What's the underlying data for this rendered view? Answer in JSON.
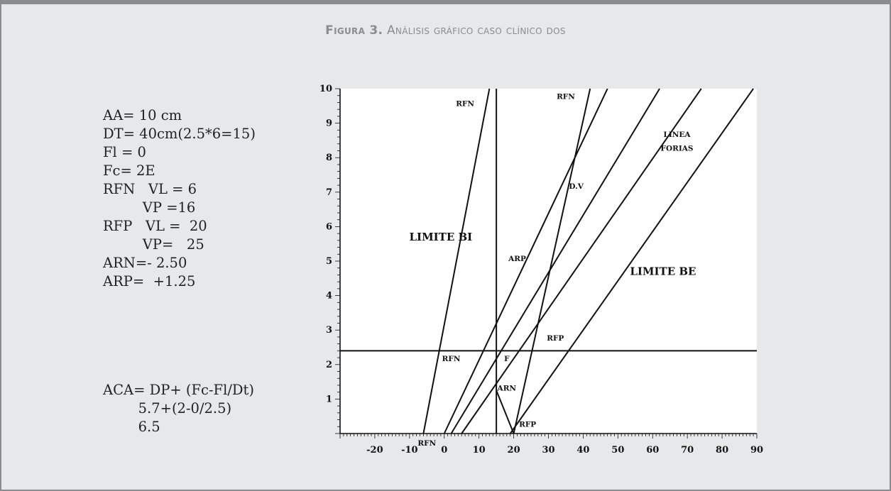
{
  "figure": {
    "label": "Figura 3.",
    "caption": "Análisis gráfico caso clínico dos"
  },
  "notes": {
    "top_lines": [
      "AA= 10 cm",
      "DT= 40cm(2.5*6=15)",
      "Fl = 0",
      "Fc= 2E",
      "RFN   VL = 6",
      "         VP =16",
      "RFP   VL =  20",
      "         VP=   25",
      "ARN=- 2.50",
      "ARP=  +1.25"
    ],
    "bottom_lines": [
      "ACA= DP+ (Fc-Fl/Dt)",
      "        5.7+(2-0/2.5)",
      "        6.5"
    ]
  },
  "chart_data": {
    "type": "line",
    "xlim": [
      -30,
      90
    ],
    "ylim": [
      0,
      10
    ],
    "x_ticks": [
      -20,
      -10,
      0,
      10,
      20,
      30,
      40,
      50,
      60,
      70,
      80,
      90
    ],
    "y_ticks": [
      1,
      2,
      3,
      4,
      5,
      6,
      7,
      8,
      9,
      10
    ],
    "x_tick_labels": [
      "-20",
      "-10",
      "0",
      "10",
      "20",
      "30",
      "40",
      "50",
      "60",
      "70",
      "80",
      "90"
    ],
    "y_tick_labels": [
      "1",
      "2",
      "3",
      "4",
      "5",
      "6",
      "7",
      "8",
      "9",
      "10"
    ],
    "lines": [
      {
        "points": [
          [
            -6,
            0
          ],
          [
            13,
            10
          ]
        ]
      },
      {
        "points": [
          [
            15,
            0
          ],
          [
            15,
            10
          ]
        ]
      },
      {
        "points": [
          [
            -30,
            2.4
          ],
          [
            90,
            2.4
          ]
        ]
      },
      {
        "points": [
          [
            0,
            0
          ],
          [
            47,
            10
          ]
        ]
      },
      {
        "points": [
          [
            2,
            0
          ],
          [
            62,
            10
          ]
        ]
      },
      {
        "points": [
          [
            15,
            1.25
          ],
          [
            20,
            0
          ]
        ]
      },
      {
        "points": [
          [
            20,
            0
          ],
          [
            42,
            10
          ]
        ]
      },
      {
        "points": [
          [
            5,
            0
          ],
          [
            74,
            10
          ]
        ]
      },
      {
        "points": [
          [
            19,
            0
          ],
          [
            89,
            10
          ]
        ]
      }
    ],
    "annotations": [
      {
        "text": "RFN",
        "x": 6,
        "y": 9.5
      },
      {
        "text": "RFN",
        "x": 35,
        "y": 9.7
      },
      {
        "text": "LINEA",
        "x": 67,
        "y": 8.6
      },
      {
        "text": "FORIAS",
        "x": 67,
        "y": 8.2
      },
      {
        "text": "D.V",
        "x": 38,
        "y": 7.1
      },
      {
        "text": "LIMITE BI",
        "x": -1,
        "y": 5.6
      },
      {
        "text": "ARP",
        "x": 21,
        "y": 5.0
      },
      {
        "text": "LIMITE BE",
        "x": 63,
        "y": 4.6
      },
      {
        "text": "RFP",
        "x": 32,
        "y": 2.7
      },
      {
        "text": "RFN",
        "x": 2,
        "y": 2.1
      },
      {
        "text": "F",
        "x": 18,
        "y": 2.1
      },
      {
        "text": "ARN",
        "x": 18,
        "y": 1.25
      },
      {
        "text": "RFP",
        "x": 24,
        "y": 0.2
      },
      {
        "text": "RFN",
        "x": -5,
        "y": -0.35
      }
    ]
  }
}
